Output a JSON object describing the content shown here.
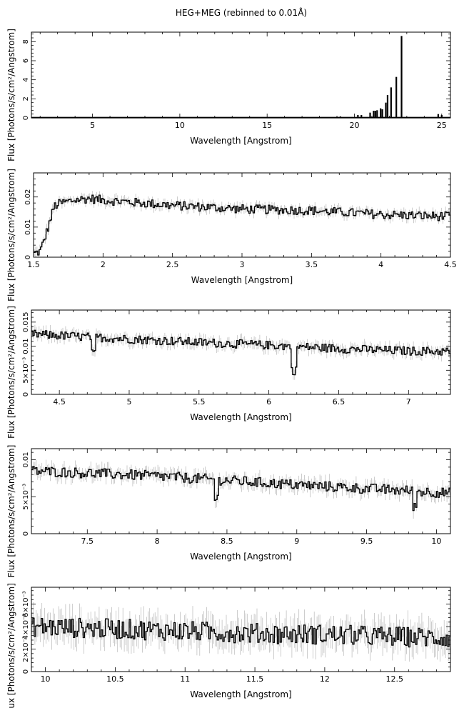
{
  "figure": {
    "title": "HEG+MEG (rebinned to 0.01Å)"
  },
  "chart_data": [
    {
      "type": "line",
      "xlabel": "Wavelength [Angstrom]",
      "ylabel": "Flux [Photons/s/cm²/Angstrom]",
      "xlim": [
        1.5,
        25.5
      ],
      "ylim": [
        0,
        9
      ],
      "xticks": [
        5,
        10,
        15,
        20,
        25
      ],
      "yticks": [
        {
          "v": 0,
          "t": "0"
        },
        {
          "v": 2,
          "t": "2"
        },
        {
          "v": 4,
          "t": "4"
        },
        {
          "v": 6,
          "t": "6"
        },
        {
          "v": 8,
          "t": "8"
        }
      ],
      "baseline": 0.03,
      "lines": [
        {
          "x": 19.0,
          "y": 0.1
        },
        {
          "x": 19.2,
          "y": 0.15
        },
        {
          "x": 20.2,
          "y": 0.3
        },
        {
          "x": 20.4,
          "y": 0.3
        },
        {
          "x": 20.9,
          "y": 0.55
        },
        {
          "x": 21.1,
          "y": 0.75
        },
        {
          "x": 21.2,
          "y": 0.75
        },
        {
          "x": 21.3,
          "y": 0.8
        },
        {
          "x": 21.5,
          "y": 1.0
        },
        {
          "x": 21.6,
          "y": 0.9
        },
        {
          "x": 21.8,
          "y": 1.6
        },
        {
          "x": 21.9,
          "y": 2.4
        },
        {
          "x": 22.1,
          "y": 3.2
        },
        {
          "x": 22.4,
          "y": 4.3
        },
        {
          "x": 22.7,
          "y": 8.6
        },
        {
          "x": 24.8,
          "y": 0.4
        },
        {
          "x": 25.0,
          "y": 0.3
        }
      ]
    },
    {
      "type": "line",
      "xlabel": "Wavelength [Angstrom]",
      "ylabel": "Flux [Photons/s/cm²/Angstrom]",
      "xlim": [
        1.5,
        4.5
      ],
      "ylim": [
        0,
        0.028
      ],
      "xticks": [
        1.5,
        2,
        2.5,
        3,
        3.5,
        4,
        4.5
      ],
      "yticks": [
        {
          "v": 0,
          "t": "0"
        },
        {
          "v": 0.01,
          "t": "0.01"
        },
        {
          "v": 0.02,
          "t": "0.02"
        }
      ],
      "profile": [
        [
          1.5,
          0.001
        ],
        [
          1.55,
          0.002
        ],
        [
          1.6,
          0.009
        ],
        [
          1.65,
          0.017
        ],
        [
          1.7,
          0.018
        ],
        [
          1.8,
          0.019
        ],
        [
          1.9,
          0.0195
        ],
        [
          2.0,
          0.019
        ],
        [
          2.5,
          0.0172
        ],
        [
          3.0,
          0.016
        ],
        [
          3.5,
          0.0155
        ],
        [
          4.0,
          0.0142
        ],
        [
          4.5,
          0.0135
        ]
      ],
      "noise": 0.0015,
      "errors": 0.0013
    },
    {
      "type": "line",
      "xlabel": "Wavelength [Angstrom]",
      "ylabel": "Flux [Photons/s/cm²/Angstrom]",
      "xlim": [
        4.3,
        7.3
      ],
      "ylim": [
        0,
        0.0175
      ],
      "xticks": [
        4.5,
        5,
        5.5,
        6,
        6.5,
        7
      ],
      "yticks": [
        {
          "v": 0,
          "t": "0"
        },
        {
          "v": 0.005,
          "t": "5×10⁻³"
        },
        {
          "v": 0.01,
          "t": "0.01"
        },
        {
          "v": 0.015,
          "t": "0.015"
        }
      ],
      "profile": [
        [
          4.3,
          0.0125
        ],
        [
          5.0,
          0.0115
        ],
        [
          5.5,
          0.0108
        ],
        [
          6.0,
          0.0102
        ],
        [
          6.5,
          0.0095
        ],
        [
          7.0,
          0.009
        ],
        [
          7.3,
          0.0089
        ]
      ],
      "dips": [
        [
          4.74,
          0.0035
        ],
        [
          6.18,
          0.005
        ]
      ],
      "noise": 0.0009,
      "errors": 0.001
    },
    {
      "type": "line",
      "xlabel": "Wavelength [Angstrom]",
      "ylabel": "Flux [Photons/s/cm²/Angstrom]",
      "xlim": [
        7.1,
        10.1
      ],
      "ylim": [
        0,
        0.0115
      ],
      "xticks": [
        7.5,
        8,
        8.5,
        9,
        9.5,
        10
      ],
      "yticks": [
        {
          "v": 0,
          "t": "0"
        },
        {
          "v": 0.005,
          "t": "5×10⁻³"
        },
        {
          "v": 0.01,
          "t": "0.01"
        }
      ],
      "profile": [
        [
          7.1,
          0.0085
        ],
        [
          7.5,
          0.0082
        ],
        [
          8.0,
          0.0078
        ],
        [
          8.5,
          0.0072
        ],
        [
          9.0,
          0.0066
        ],
        [
          9.5,
          0.0061
        ],
        [
          10.1,
          0.0055
        ]
      ],
      "dips": [
        [
          8.43,
          0.0025
        ],
        [
          9.85,
          0.002
        ]
      ],
      "noise": 0.0007,
      "errors": 0.0008
    },
    {
      "type": "line",
      "xlabel": "Wavelength [Angstrom]",
      "ylabel": "Flux [Photons/s/cm²/Angstrom]",
      "xlim": [
        9.9,
        12.9
      ],
      "ylim": [
        0,
        0.0075
      ],
      "xticks": [
        10,
        10.5,
        11,
        11.5,
        12,
        12.5
      ],
      "yticks": [
        {
          "v": 0,
          "t": "0"
        },
        {
          "v": 0.002,
          "t": "2×10⁻³"
        },
        {
          "v": 0.004,
          "t": "4×10⁻³"
        },
        {
          "v": 0.006,
          "t": "6×10⁻³"
        }
      ],
      "profile": [
        [
          9.9,
          0.004
        ],
        [
          10.5,
          0.0038
        ],
        [
          11.0,
          0.0036
        ],
        [
          11.5,
          0.0034
        ],
        [
          12.0,
          0.0033
        ],
        [
          12.5,
          0.0031
        ],
        [
          12.9,
          0.003
        ]
      ],
      "noise": 0.0009,
      "errors": 0.0011
    }
  ]
}
